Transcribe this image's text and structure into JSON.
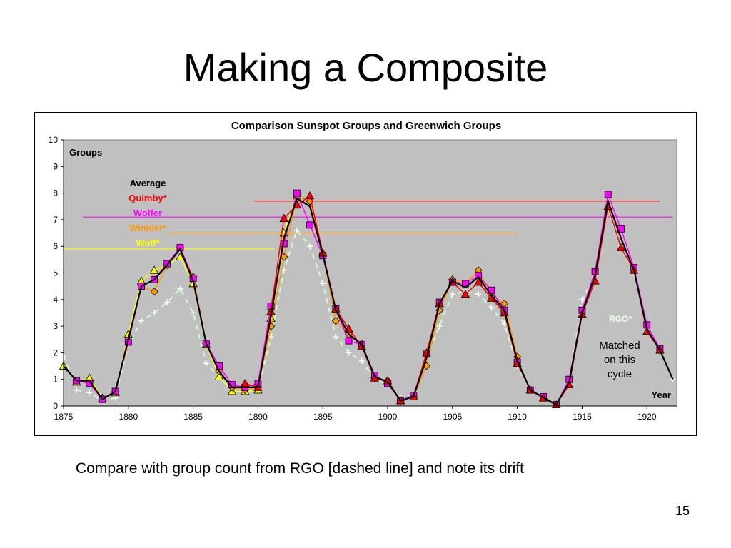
{
  "slide": {
    "title": "Making a Composite",
    "caption": "Compare with group count from RGO [dashed line] and note its drift",
    "page_number": "15"
  },
  "chart_data": {
    "type": "line",
    "title": "Comparison Sunspot Groups and Greenwich Groups",
    "xlabel": "Year",
    "ylabel": "Groups",
    "xlim": [
      1875,
      1922.3
    ],
    "ylim": [
      0,
      10
    ],
    "xticks": [
      1875,
      1880,
      1885,
      1890,
      1895,
      1900,
      1905,
      1910,
      1915,
      1920
    ],
    "yticks": [
      0,
      1,
      2,
      3,
      4,
      5,
      6,
      7,
      8,
      9,
      10
    ],
    "plot_background": "#c0c0c0",
    "annotations": {
      "rgo_label": "RGO*",
      "matched_note": [
        "Matched",
        "on this",
        "cycle"
      ]
    },
    "legend_labels": [
      {
        "name": "Average",
        "color": "#000000"
      },
      {
        "name": "Quimby*",
        "color": "#ff0000"
      },
      {
        "name": "Wolfer",
        "color": "#ff00ff"
      },
      {
        "name": "Winkler*",
        "color": "#ff9900"
      },
      {
        "name": "Wolf*",
        "color": "#ffff00"
      }
    ],
    "reference_lines": [
      {
        "series": "Quimby*",
        "y": 7.7,
        "x_from": 1889.7,
        "x_to": 1921.0,
        "color": "#ff0000"
      },
      {
        "series": "Wolfer",
        "y": 7.1,
        "x_from": 1876.5,
        "x_to": 1922.0,
        "color": "#ff00ff"
      },
      {
        "series": "Winkler*",
        "y": 6.5,
        "x_from": 1883.0,
        "x_to": 1910.0,
        "color": "#ff9900"
      },
      {
        "series": "Wolf*",
        "y": 5.9,
        "x_from": 1875.0,
        "x_to": 1891.3,
        "color": "#ffff00"
      }
    ],
    "series": [
      {
        "name": "RGO*",
        "color": "#ffffff",
        "style": "dashed-plus",
        "x": [
          1875,
          1876,
          1877,
          1878,
          1879,
          1880,
          1881,
          1882,
          1883,
          1884,
          1885,
          1886,
          1887,
          1888,
          1889,
          1890,
          1891,
          1892,
          1893,
          1894,
          1895,
          1896,
          1897,
          1898,
          1899,
          1900,
          1901,
          1902,
          1903,
          1904,
          1905,
          1906,
          1907,
          1908,
          1909,
          1910,
          1911,
          1912,
          1913,
          1914,
          1915,
          1916,
          1917,
          1918,
          1919,
          1920,
          1921,
          1922
        ],
        "y": [
          1.9,
          0.6,
          0.5,
          0.2,
          0.3,
          2.3,
          3.2,
          3.5,
          3.9,
          4.4,
          3.5,
          1.6,
          1.1,
          0.6,
          0.5,
          0.6,
          2.6,
          5.1,
          6.6,
          6.0,
          4.6,
          2.6,
          2.0,
          1.7,
          1.0,
          0.8,
          0.3,
          0.3,
          1.8,
          3.0,
          4.2,
          4.3,
          4.2,
          3.7,
          3.1,
          1.5,
          0.6,
          0.3,
          0.1,
          0.9,
          4.0,
          4.9,
          7.4,
          6.0,
          5.0,
          3.0,
          2.1,
          1.0
        ]
      },
      {
        "name": "Wolf*",
        "color": "#ffff00",
        "marker": "triangle",
        "x": [
          1875,
          1876,
          1877,
          1878,
          1879,
          1880,
          1881,
          1882,
          1883,
          1884,
          1885,
          1886,
          1887,
          1888,
          1889,
          1890,
          1891,
          1892,
          1893
        ],
        "y": [
          1.5,
          0.9,
          1.05,
          0.3,
          0.5,
          2.7,
          4.7,
          5.1,
          5.3,
          5.6,
          4.6,
          2.3,
          1.1,
          0.55,
          0.55,
          0.6,
          3.3,
          6.5,
          7.9
        ]
      },
      {
        "name": "Winkler*",
        "color": "#ff9900",
        "marker": "diamond",
        "x": [
          1876,
          1877,
          1878,
          1879,
          1880,
          1881,
          1882,
          1883,
          1884,
          1885,
          1886,
          1887,
          1888,
          1889,
          1890,
          1891,
          1892,
          1893,
          1894,
          1895,
          1896,
          1897,
          1898,
          1899,
          1900,
          1901,
          1902,
          1903,
          1904,
          1905,
          1906,
          1907,
          1908,
          1909,
          1910
        ],
        "y": [
          0.95,
          0.85,
          0.25,
          0.55,
          2.4,
          4.5,
          4.3,
          5.3,
          5.95,
          4.85,
          2.35,
          1.3,
          0.7,
          0.6,
          0.7,
          3.0,
          5.6,
          7.9,
          7.7,
          5.7,
          3.2,
          2.7,
          2.35,
          1.05,
          0.95,
          0.2,
          0.35,
          1.5,
          3.6,
          4.75,
          4.6,
          5.1,
          4.1,
          3.85,
          1.85
        ]
      },
      {
        "name": "Wolfer",
        "color": "#ff00ff",
        "marker": "square",
        "x": [
          1876,
          1877,
          1878,
          1879,
          1880,
          1881,
          1882,
          1883,
          1884,
          1885,
          1886,
          1887,
          1888,
          1889,
          1890,
          1891,
          1892,
          1893,
          1894,
          1895,
          1896,
          1897,
          1898,
          1899,
          1900,
          1901,
          1902,
          1903,
          1904,
          1905,
          1906,
          1907,
          1908,
          1909,
          1910,
          1911,
          1912,
          1913,
          1914,
          1915,
          1916,
          1917,
          1918,
          1919,
          1920,
          1921
        ],
        "y": [
          0.95,
          0.85,
          0.25,
          0.55,
          2.4,
          4.5,
          4.75,
          5.35,
          5.95,
          4.8,
          2.35,
          1.5,
          0.8,
          0.7,
          0.85,
          3.75,
          6.1,
          8.0,
          6.8,
          5.65,
          3.65,
          2.45,
          2.3,
          1.15,
          0.85,
          0.2,
          0.4,
          1.95,
          3.9,
          4.65,
          4.6,
          4.9,
          4.35,
          3.6,
          1.65,
          0.6,
          0.35,
          0.05,
          1.0,
          3.6,
          5.05,
          7.95,
          6.65,
          5.2,
          3.05,
          2.15
        ]
      },
      {
        "name": "Quimby*",
        "color": "#ff0000",
        "marker": "triangle",
        "x": [
          1889,
          1890,
          1891,
          1892,
          1893,
          1894,
          1895,
          1896,
          1897,
          1898,
          1899,
          1900,
          1901,
          1902,
          1903,
          1904,
          1905,
          1906,
          1907,
          1908,
          1909,
          1910,
          1911,
          1912,
          1913,
          1914,
          1915,
          1916,
          1917,
          1918,
          1919,
          1920,
          1921
        ],
        "y": [
          0.85,
          0.7,
          3.55,
          7.05,
          7.55,
          7.9,
          5.75,
          3.65,
          2.9,
          2.25,
          1.05,
          0.95,
          0.2,
          0.35,
          2.0,
          3.85,
          4.65,
          4.2,
          4.65,
          4.05,
          3.5,
          1.6,
          0.6,
          0.3,
          0.05,
          0.8,
          3.45,
          4.7,
          7.5,
          5.95,
          5.1,
          2.8,
          2.1
        ]
      },
      {
        "name": "Average",
        "color": "#000000",
        "x": [
          1875,
          1876,
          1877,
          1878,
          1879,
          1880,
          1881,
          1882,
          1883,
          1884,
          1885,
          1886,
          1887,
          1888,
          1889,
          1890,
          1891,
          1892,
          1893,
          1894,
          1895,
          1896,
          1897,
          1898,
          1899,
          1900,
          1901,
          1902,
          1903,
          1904,
          1905,
          1906,
          1907,
          1908,
          1909,
          1910,
          1911,
          1912,
          1913,
          1914,
          1915,
          1916,
          1917,
          1918,
          1919,
          1920,
          1921,
          1922
        ],
        "y": [
          1.5,
          0.95,
          0.95,
          0.25,
          0.55,
          2.5,
          4.5,
          4.75,
          5.3,
          5.9,
          4.7,
          2.35,
          1.3,
          0.7,
          0.7,
          0.7,
          3.4,
          6.3,
          7.8,
          7.5,
          5.7,
          3.6,
          2.7,
          2.3,
          1.1,
          0.9,
          0.2,
          0.35,
          1.8,
          3.85,
          4.7,
          4.45,
          4.85,
          4.15,
          3.6,
          1.7,
          0.6,
          0.32,
          0.05,
          0.9,
          3.5,
          4.9,
          7.7,
          6.3,
          5.1,
          2.9,
          2.1,
          1.0
        ]
      }
    ]
  }
}
